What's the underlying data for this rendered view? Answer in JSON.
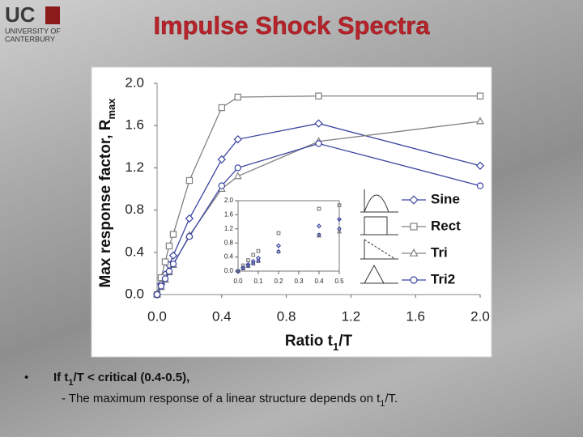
{
  "header": {
    "logo": "UC",
    "logo_lines": [
      "UNIVERSITY OF",
      "CANTERBURY"
    ],
    "title": "Impulse Shock Spectra"
  },
  "chart_data": [
    {
      "type": "line",
      "x_label": [
        "Ratio t",
        "1",
        "/T"
      ],
      "y_label": [
        "Max response factor, R",
        "max"
      ],
      "x": [
        0.0,
        0.025,
        0.05,
        0.075,
        0.1,
        0.2,
        0.4,
        0.5,
        1.0,
        2.0
      ],
      "series": [
        {
          "name": "Sine",
          "color": "#3a45a0",
          "marker": "diamond",
          "values": [
            0,
            0.1,
            0.19,
            0.28,
            0.37,
            0.72,
            1.28,
            1.47,
            1.62,
            1.22
          ]
        },
        {
          "name": "Rect",
          "color": "#808080",
          "marker": "square",
          "values": [
            0,
            0.16,
            0.31,
            0.46,
            0.57,
            1.08,
            1.77,
            1.87,
            1.88,
            1.88
          ]
        },
        {
          "name": "Tri",
          "color": "#808080",
          "marker": "triangle",
          "values": [
            0,
            0.07,
            0.14,
            0.21,
            0.28,
            0.56,
            1.0,
            1.12,
            1.45,
            1.64
          ]
        },
        {
          "name": "Tri2",
          "color": "#3a45a0",
          "marker": "circle",
          "values": [
            0,
            0.08,
            0.15,
            0.22,
            0.29,
            0.55,
            1.03,
            1.2,
            1.43,
            1.03
          ]
        }
      ],
      "xlim": [
        0,
        2.0
      ],
      "xticks": [
        {
          "value": 0,
          "label": "0.0"
        },
        0.4,
        0.8,
        1.2,
        1.6,
        {
          "value": 2.0,
          "label": "2.0"
        }
      ],
      "ylim": [
        0,
        2.0
      ],
      "yticks": [
        {
          "value": 0,
          "label": "0.0"
        },
        0.4,
        0.8,
        1.2,
        1.6,
        {
          "value": 2.0,
          "label": "2.0"
        }
      ]
    },
    {
      "type": "scatter",
      "x": [
        0.0,
        0.025,
        0.05,
        0.075,
        0.1,
        0.2,
        0.4,
        0.5
      ],
      "series": [
        {
          "color": "#3a45a0",
          "marker": "diamond",
          "values": [
            0,
            0.1,
            0.19,
            0.28,
            0.37,
            0.72,
            1.28,
            1.47
          ]
        },
        {
          "color": "#808080",
          "marker": "square",
          "values": [
            0,
            0.16,
            0.31,
            0.46,
            0.57,
            1.08,
            1.77,
            1.87
          ]
        },
        {
          "color": "#808080",
          "marker": "triangle",
          "values": [
            0,
            0.07,
            0.14,
            0.21,
            0.28,
            0.56,
            1.0,
            1.12
          ]
        },
        {
          "color": "#3a45a0",
          "marker": "circle",
          "values": [
            0,
            0.08,
            0.15,
            0.22,
            0.29,
            0.55,
            1.03,
            1.2
          ]
        }
      ],
      "xlim": [
        0,
        0.5
      ],
      "xticks": [
        {
          "value": 0,
          "label": "0.0"
        },
        0.1,
        0.2,
        0.3,
        0.4,
        0.5
      ],
      "ylim": [
        0,
        2.0
      ],
      "yticks": [
        {
          "value": 0,
          "label": "0.0"
        },
        0.4,
        0.8,
        1.2,
        1.6,
        {
          "value": 2.0,
          "label": "2.0"
        }
      ]
    }
  ],
  "body": {
    "bullet": "•",
    "line1": [
      "If t",
      "1",
      "/T < critical (0.4-0.5),"
    ],
    "line2": [
      "- The maximum response of a linear structure depends on t",
      "1",
      "/T."
    ]
  }
}
